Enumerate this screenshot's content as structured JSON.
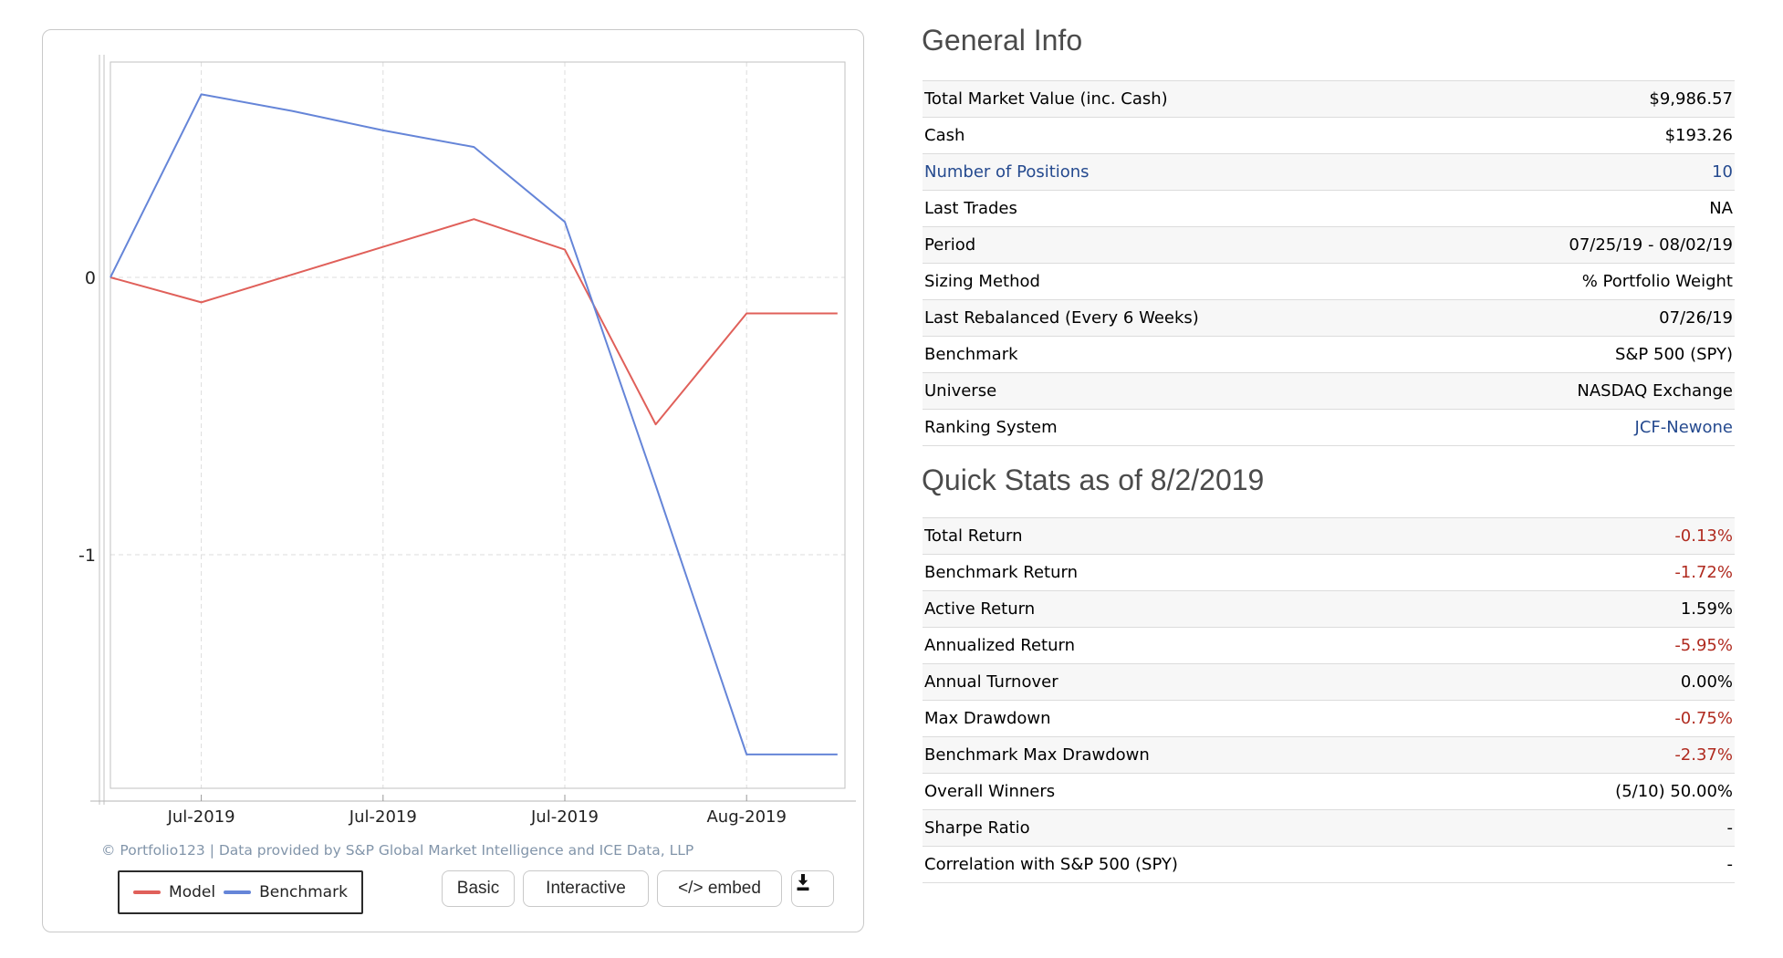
{
  "colors": {
    "negative_value": "#b02b20",
    "link": "#254a8f",
    "model_line": "#e0605a",
    "benchmark_line": "#6585d8",
    "heading": "#4b4b4b",
    "copyright_text": "#8295aa",
    "grid": "#dcdcdc",
    "axis": "#c2c2c2"
  },
  "chart_data": {
    "type": "line",
    "title": "",
    "xlabel": "",
    "ylabel": "",
    "x_index": [
      0,
      1,
      2,
      3,
      4,
      5,
      6,
      7,
      8
    ],
    "series": [
      {
        "name": "Model",
        "color": "#e0605a",
        "values": [
          0,
          -0.09,
          0.01,
          0.11,
          0.21,
          0.1,
          -0.53,
          -0.13,
          -0.13
        ]
      },
      {
        "name": "Benchmark",
        "color": "#6585d8",
        "values": [
          0,
          0.66,
          0.6,
          0.53,
          0.47,
          0.2,
          -0.75,
          -1.72,
          -1.72
        ]
      }
    ],
    "y_ticks": [
      {
        "value": 0,
        "label": "0"
      },
      {
        "value": -1,
        "label": "-1"
      }
    ],
    "x_ticks": [
      {
        "point_index": 1,
        "label": "Jul-2019"
      },
      {
        "point_index": 3,
        "label": "Jul-2019"
      },
      {
        "point_index": 5,
        "label": "Jul-2019"
      },
      {
        "point_index": 7,
        "label": "Aug-2019"
      }
    ],
    "ylim": [
      -1.84,
      0.78
    ],
    "grid": "dashed",
    "legend_position": "bottom-left"
  },
  "chart_footer": {
    "copyright": "© Portfolio123 | Data provided by S&P Global Market Intelligence and ICE Data, LLP",
    "legend": [
      {
        "label": "Model"
      },
      {
        "label": "Benchmark"
      }
    ],
    "buttons": {
      "basic": "Basic",
      "interactive": "Interactive",
      "embed": "</> embed"
    }
  },
  "general_info": {
    "title": "General Info",
    "rows": [
      {
        "label": "Total Market Value (inc. Cash)",
        "value": "$9,986.57"
      },
      {
        "label": "Cash",
        "value": "$193.26"
      },
      {
        "label": "Number of Positions",
        "value": "10",
        "label_style": "link",
        "value_style": "link",
        "link": true
      },
      {
        "label": "Last Trades",
        "value": "NA"
      },
      {
        "label": "Period",
        "value": "07/25/19 - 08/02/19"
      },
      {
        "label": "Sizing Method",
        "value": "% Portfolio Weight"
      },
      {
        "label": "Last Rebalanced (Every 6 Weeks)",
        "value": "07/26/19"
      },
      {
        "label": "Benchmark",
        "value": "S&P 500 (SPY)"
      },
      {
        "label": "Universe",
        "value": "NASDAQ Exchange"
      },
      {
        "label": "Ranking System",
        "value": "JCF-Newone",
        "value_style": "link",
        "link": true
      }
    ]
  },
  "quick_stats": {
    "title": "Quick Stats as of 8/2/2019",
    "rows": [
      {
        "label": "Total Return",
        "value": "-0.13%",
        "value_style": "negative"
      },
      {
        "label": "Benchmark Return",
        "value": "-1.72%",
        "value_style": "negative"
      },
      {
        "label": "Active Return",
        "value": "1.59%"
      },
      {
        "label": "Annualized Return",
        "value": "-5.95%",
        "value_style": "negative"
      },
      {
        "label": "Annual Turnover",
        "value": "0.00%"
      },
      {
        "label": "Max Drawdown",
        "value": "-0.75%",
        "value_style": "negative"
      },
      {
        "label": "Benchmark Max Drawdown",
        "value": "-2.37%",
        "value_style": "negative"
      },
      {
        "label": "Overall Winners",
        "value": "(5/10) 50.00%"
      },
      {
        "label": "Sharpe Ratio",
        "value": "-"
      },
      {
        "label": "Correlation with S&P 500 (SPY)",
        "value": "-"
      }
    ]
  }
}
